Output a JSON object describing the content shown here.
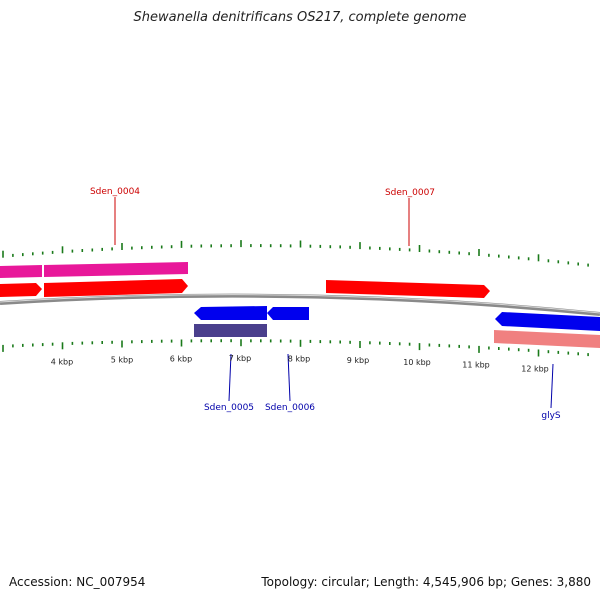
{
  "title": "Shewanella denitrificans OS217, complete genome",
  "footer": {
    "accession": "Accession: NC_007954",
    "summary": "Topology: circular; Length: 4,545,906 bp; Genes: 3,880"
  },
  "colors": {
    "forward_cds": "#ff0000",
    "reverse_cds": "#0000ff",
    "forward_feature": "#e8189a",
    "reverse_feature": "#4a3f8c",
    "reverse_rna": "#f08080",
    "backbone": "#8a8a8a",
    "tick": "#1a7a1a",
    "label_forward": "#cc0000",
    "label_reverse": "#0000aa"
  },
  "scale_labels": [
    "4 kbp",
    "5 kbp",
    "6 kbp",
    "7 kbp",
    "8 kbp",
    "9 kbp",
    "10 kbp",
    "11 kbp",
    "12 kbp"
  ],
  "gene_labels": [
    {
      "name": "Sden_0004",
      "strand": "forward"
    },
    {
      "name": "Sden_0007",
      "strand": "forward"
    },
    {
      "name": "Sden_0005",
      "strand": "reverse"
    },
    {
      "name": "Sden_0006",
      "strand": "reverse"
    },
    {
      "name": "glyS",
      "strand": "reverse"
    }
  ]
}
